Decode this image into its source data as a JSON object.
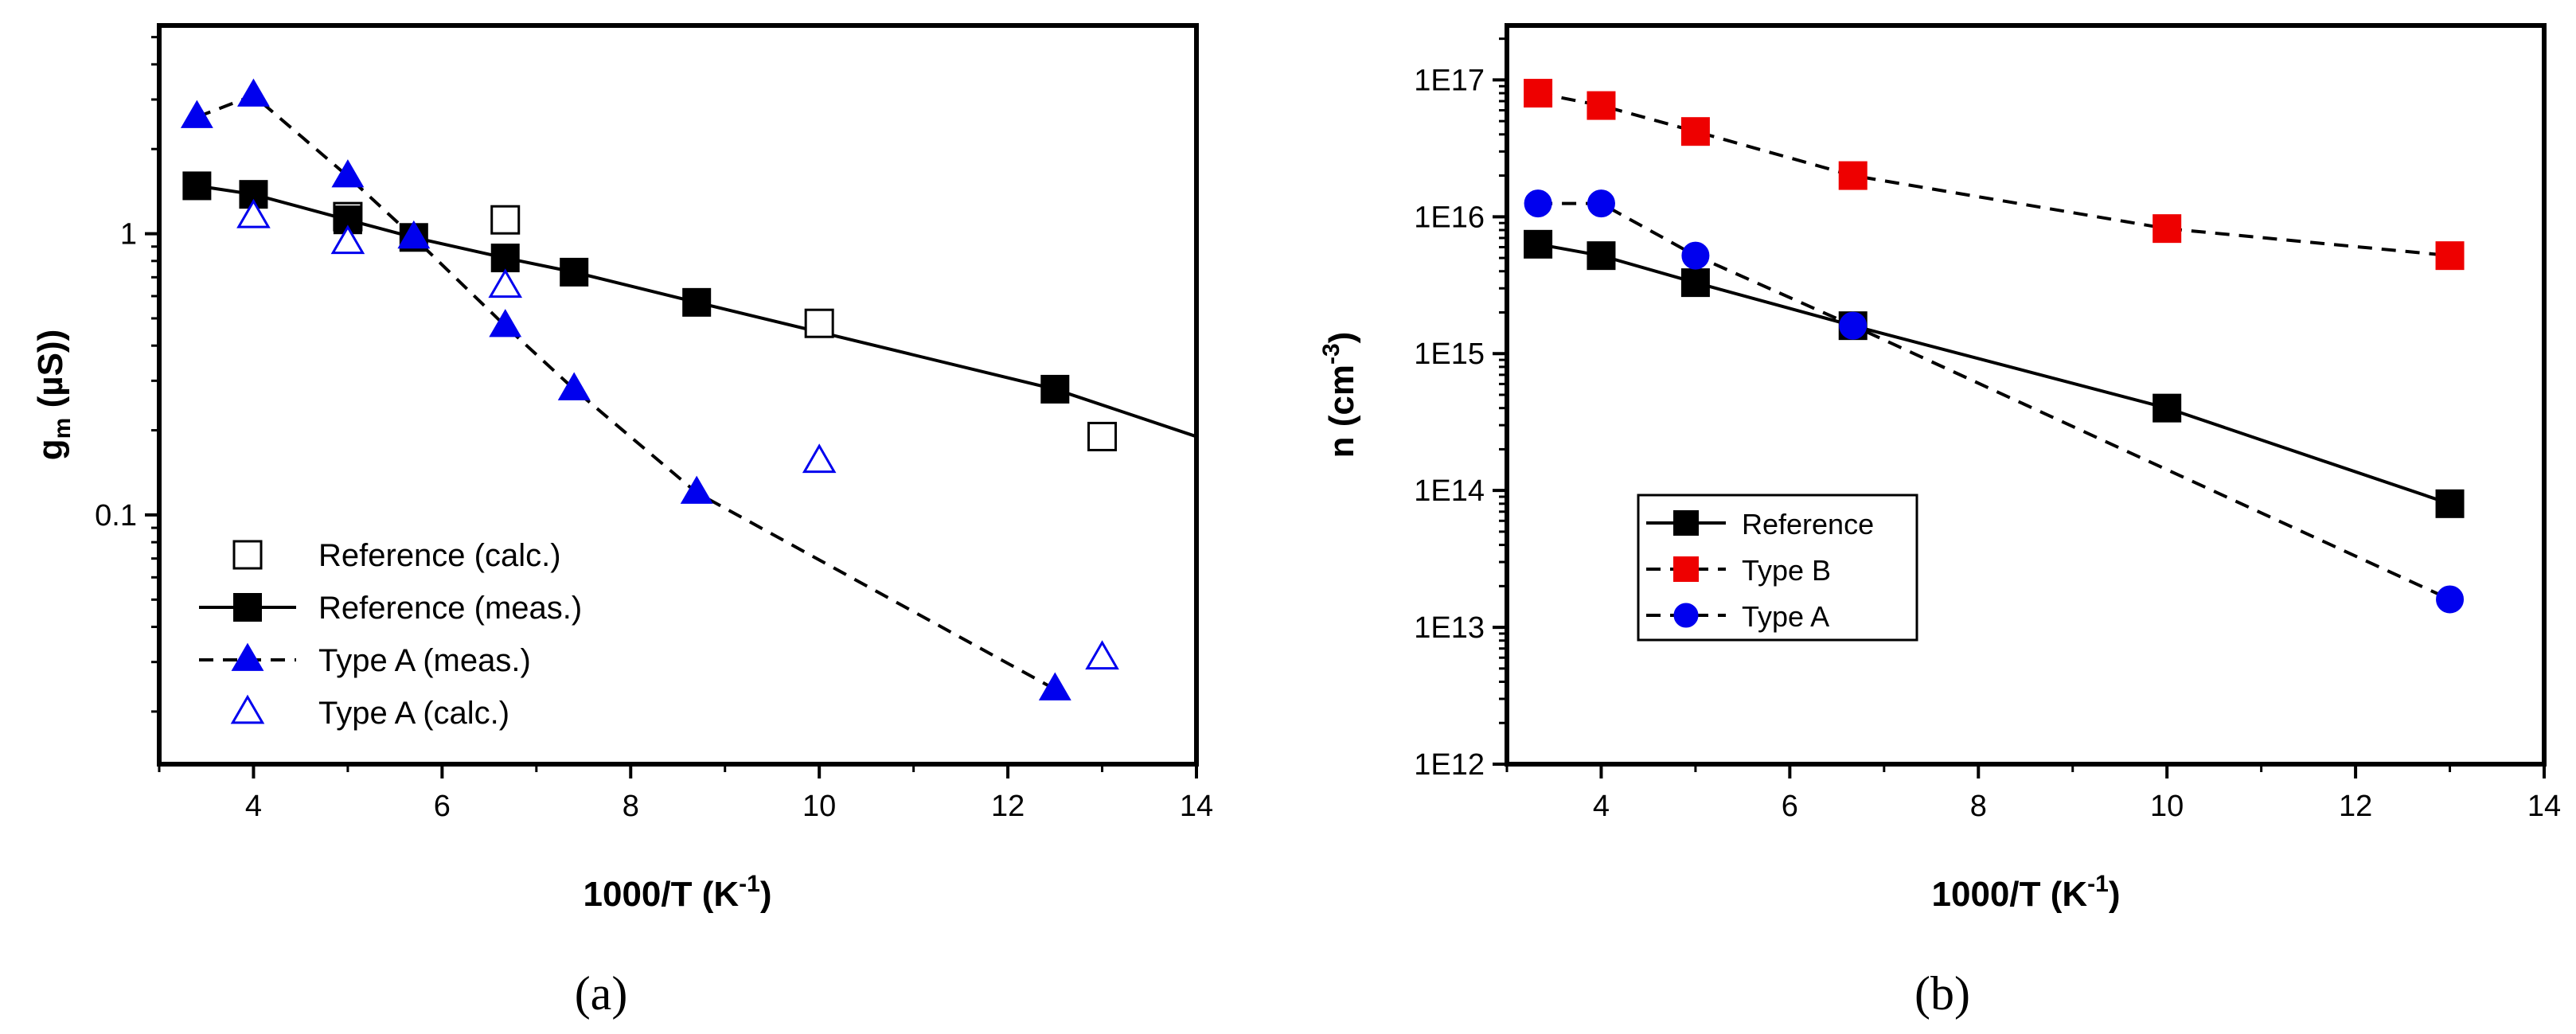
{
  "chart_data": [
    {
      "type": "line",
      "panel": "a",
      "caption": "(a)",
      "xlabel": "1000/T (K",
      "xlabel_sup": "-1",
      "xlabel_end": ")",
      "ylabel_main": "g",
      "ylabel_sub": "m",
      "ylabel_end": " (µS))",
      "xlim": [
        3,
        14
      ],
      "ylim": [
        0.013,
        5.5
      ],
      "yscale": "log",
      "x_ticks": [
        4,
        6,
        8,
        10,
        12,
        14
      ],
      "x_tick_labels": [
        "4",
        "6",
        "8",
        "10",
        "12",
        "14"
      ],
      "y_ticks": [
        0.1,
        1
      ],
      "y_tick_labels": [
        "0.1",
        "1"
      ],
      "legend_position": "bottom-left",
      "series": [
        {
          "name": "Reference (calc.)",
          "marker": "square-open",
          "color": "#000000",
          "line": "none",
          "x": [
            5,
            6.67,
            10,
            13
          ],
          "y": [
            1.15,
            1.12,
            0.48,
            0.19
          ]
        },
        {
          "name": "Reference (meas.)",
          "marker": "square-filled",
          "color": "#000000",
          "line": "solid",
          "x": [
            3.4,
            4,
            5,
            5.7,
            6.67,
            7.4,
            8.7,
            12.5
          ],
          "y": [
            1.48,
            1.38,
            1.12,
            0.97,
            0.82,
            0.73,
            0.57,
            0.28
          ],
          "line_extend_to": {
            "x": 14,
            "y": 0.19
          }
        },
        {
          "name": "Type A (meas.)",
          "marker": "triangle-filled",
          "color": "#0000EE",
          "line": "dashed",
          "x": [
            3.4,
            4,
            5,
            5.7,
            6.67,
            7.4,
            8.7,
            12.5
          ],
          "y": [
            2.6,
            3.1,
            1.6,
            0.97,
            0.47,
            0.28,
            0.12,
            0.024
          ]
        },
        {
          "name": "Type A (calc.)",
          "marker": "triangle-open",
          "color": "#0000EE",
          "line": "none",
          "x": [
            4,
            5,
            6.67,
            10,
            13
          ],
          "y": [
            1.15,
            0.93,
            0.65,
            0.155,
            0.031
          ]
        }
      ]
    },
    {
      "type": "line",
      "panel": "b",
      "caption": "(b)",
      "xlabel": "1000/T (K",
      "xlabel_sup": "-1",
      "xlabel_end": ")",
      "ylabel_main": "n (cm",
      "ylabel_sup": "-3",
      "ylabel_end": ")",
      "xlim": [
        3,
        14
      ],
      "ylim": [
        1000000000000.0,
        2.5e+17
      ],
      "yscale": "log",
      "x_ticks": [
        4,
        6,
        8,
        10,
        12,
        14
      ],
      "x_tick_labels": [
        "4",
        "6",
        "8",
        "10",
        "12",
        "14"
      ],
      "y_ticks": [
        1000000000000.0,
        10000000000000.0,
        100000000000000.0,
        1000000000000000.0,
        1e+16,
        1e+17
      ],
      "y_tick_labels": [
        "1E12",
        "1E13",
        "1E14",
        "1E15",
        "1E16",
        "1E17"
      ],
      "legend_position": "center-left",
      "series": [
        {
          "name": "Reference",
          "marker": "square-filled",
          "color": "#000000",
          "line": "solid",
          "x": [
            3.33,
            4,
            5,
            6.67,
            10,
            13
          ],
          "y": [
            6300000000000000.0,
            5200000000000000.0,
            3300000000000000.0,
            1600000000000000.0,
            400000000000000.0,
            80000000000000.0
          ]
        },
        {
          "name": "Type B",
          "marker": "square-filled",
          "color": "#EE0000",
          "line": "dashed",
          "x": [
            3.33,
            4,
            5,
            6.67,
            10,
            13
          ],
          "y": [
            8e+16,
            6.5e+16,
            4.2e+16,
            2e+16,
            8200000000000000.0,
            5200000000000000.0
          ]
        },
        {
          "name": "Type A",
          "marker": "circle-filled",
          "color": "#0000EE",
          "line": "dashed",
          "x": [
            3.33,
            4,
            5,
            6.67,
            13
          ],
          "y": [
            1.25e+16,
            1.25e+16,
            5200000000000000.0,
            1600000000000000.0,
            16000000000000.0
          ]
        }
      ]
    }
  ]
}
